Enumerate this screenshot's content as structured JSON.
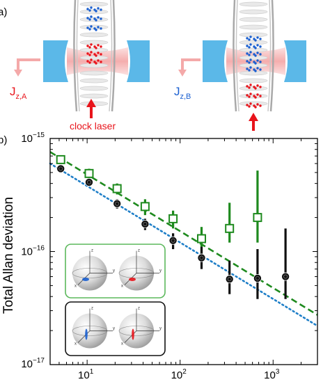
{
  "panel_a": {
    "label": "a)",
    "left_readout_symbol": "J",
    "left_readout_sub": "z,A",
    "right_readout_symbol": "J",
    "right_readout_sub": "z,B",
    "clock_laser_label": "clock laser",
    "colors": {
      "red_atoms": "#e8141b",
      "blue_atoms": "#1a5fd0",
      "mirror": "#5bb8e8",
      "cavity_beam": "#f4a9a9",
      "arrow": "#e8141b"
    }
  },
  "panel_b": {
    "label": "b)"
  },
  "chart_data": {
    "type": "scatter",
    "title": "",
    "xlabel": "",
    "ylabel": "Total Allan deviation",
    "x_scale": "log",
    "y_scale": "log",
    "xlim": [
      4,
      3000
    ],
    "ylim": [
      1e-17,
      1e-15
    ],
    "x_ticks": [
      {
        "value": 10,
        "base": "10",
        "exp": "1"
      },
      {
        "value": 100,
        "base": "10",
        "exp": "2"
      },
      {
        "value": 1000,
        "base": "10",
        "exp": "3"
      }
    ],
    "y_ticks": [
      {
        "value": 1e-15,
        "base": "10",
        "exp": "−15"
      },
      {
        "value": 1e-16,
        "base": "10",
        "exp": "−16"
      },
      {
        "value": 1e-17,
        "base": "10",
        "exp": "−17"
      }
    ],
    "grid": false,
    "series": [
      {
        "marker": "open-square",
        "color": "#1e8a1e",
        "x": [
          5.2,
          10.5,
          21,
          42,
          84,
          170,
          340,
          680
        ],
        "y": [
          6.5e-16,
          4.9e-16,
          3.6e-16,
          2.5e-16,
          1.95e-16,
          1.3e-16,
          1.6e-16,
          2e-16
        ],
        "y_low": [
          6e-16,
          4.4e-16,
          3.2e-16,
          2.1e-16,
          1.6e-16,
          9.5e-17,
          1.2e-16,
          1.2e-16
        ],
        "y_high": [
          7e-16,
          5.4e-16,
          4e-16,
          2.9e-16,
          2.3e-16,
          1.65e-16,
          2.7e-16,
          5.2e-16
        ]
      },
      {
        "marker": "filled-circle",
        "color": "#111111",
        "x": [
          5.2,
          10.5,
          21,
          42,
          84,
          170,
          340,
          680,
          1360
        ],
        "y": [
          5.4e-16,
          4.1e-16,
          2.65e-16,
          1.75e-16,
          1.25e-16,
          8.8e-17,
          5.7e-17,
          5.8e-17,
          6e-17
        ],
        "y_low": [
          5.1e-16,
          3.8e-16,
          2.4e-16,
          1.55e-16,
          1.05e-16,
          7e-17,
          4.2e-17,
          3.8e-17,
          3.8e-17
        ],
        "y_high": [
          5.7e-16,
          4.4e-16,
          2.9e-16,
          1.95e-16,
          1.45e-16,
          1.1e-16,
          8.3e-17,
          1.05e-16,
          1.6e-16
        ]
      }
    ],
    "fits": [
      {
        "style": "dashed",
        "color": "#1e8a1e",
        "x": [
          4,
          3000
        ],
        "y": [
          7.6e-16,
          2.75e-17
        ]
      },
      {
        "style": "dotted",
        "color": "#1f7fc8",
        "x": [
          4,
          3000
        ],
        "y": [
          6e-16,
          2.2e-17
        ]
      }
    ],
    "insets": [
      {
        "frame_color": "#5cb85c",
        "spots": [
          "#1a5fd0",
          "#e8141b"
        ],
        "axis_labels": [
          "z",
          "y",
          "x"
        ]
      },
      {
        "frame_color": "#111111",
        "spots": [
          "#1a5fd0",
          "#e8141b"
        ],
        "axis_labels": [
          "z",
          "y",
          "x"
        ]
      }
    ]
  }
}
